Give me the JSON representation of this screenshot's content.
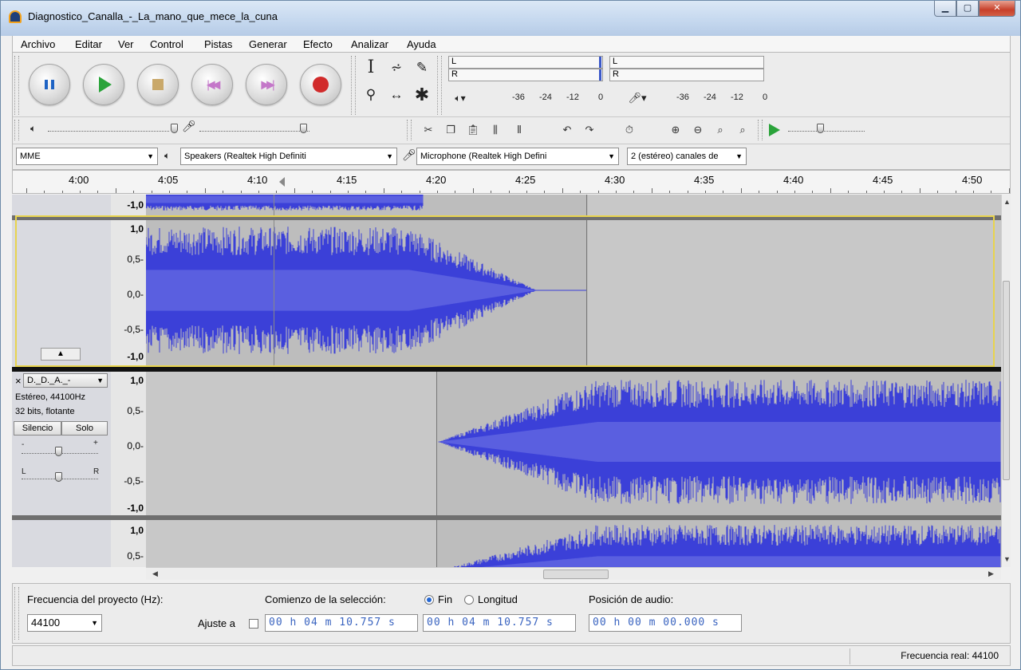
{
  "window": {
    "title": "Diagnostico_Canalla_-_La_mano_que_mece_la_cuna"
  },
  "menu": [
    "Archivo",
    "Editar",
    "Ver",
    "Control",
    "Pistas",
    "Generar",
    "Efecto",
    "Analizar",
    "Ayuda"
  ],
  "meters": {
    "play_l": "L",
    "play_r": "R",
    "rec_l": "L",
    "rec_r": "R",
    "scale": [
      "-36",
      "-24",
      "-12",
      "0"
    ]
  },
  "devices": {
    "host": "MME",
    "output": "Speakers (Realtek High Definiti",
    "input": "Microphone (Realtek High Defini",
    "channels": "2 (estéreo) canales de"
  },
  "ruler": {
    "labels": [
      "4:00",
      "4:05",
      "4:10",
      "4:15",
      "4:20",
      "4:25",
      "4:30",
      "4:35",
      "4:40",
      "4:45",
      "4:50"
    ]
  },
  "track1": {
    "scale": [
      "-1,0",
      "1,0",
      "0,5-",
      "0,0-",
      "-0,5-",
      "-1,0"
    ]
  },
  "track2": {
    "close": "×",
    "name": "D._D._A._-",
    "rate": "Estéreo, 44100Hz",
    "format": "32 bits, flotante",
    "mute": "Silencio",
    "solo": "Solo",
    "gain_minus": "-",
    "gain_plus": "+",
    "pan_l": "L",
    "pan_r": "R",
    "scale": [
      "1,0",
      "0,5-",
      "0,0-",
      "-0,5-",
      "-1,0",
      "1,0",
      "0,5-"
    ]
  },
  "selection_bar": {
    "project_rate_label": "Frecuencia del proyecto (Hz):",
    "project_rate": "44100",
    "snap_label": "Ajuste a",
    "start_label": "Comienzo de la selección:",
    "end_label": "Fin",
    "length_label": "Longitud",
    "start_value": "00 h 04 m 10.757 s",
    "end_value": "00 h 04 m 10.757 s",
    "position_label": "Posición de audio:",
    "position_value": "00 h 00 m 00.000 s"
  },
  "status": {
    "rate": "Frecuencia real: 44100"
  },
  "colors": {
    "wave": "#3b40d8",
    "wave_dark": "#2a2fc0",
    "selection": "#bdbdbd",
    "track_bg": "#c8c8c8"
  }
}
